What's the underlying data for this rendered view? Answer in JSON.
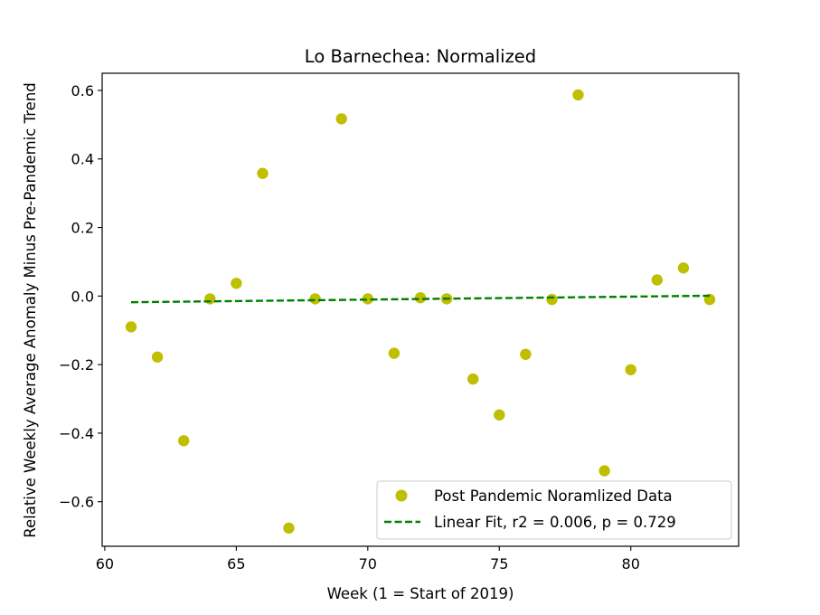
{
  "chart_data": {
    "type": "scatter",
    "title": "Lo Barnechea: Normalized",
    "xlabel": "Week (1 = Start of 2019)",
    "ylabel": "Relative Weekly Average Anomaly Minus Pre-Pandemic Trend",
    "xlim": [
      59.9,
      84.1
    ],
    "ylim": [
      -0.73,
      0.65
    ],
    "xticks": [
      60,
      65,
      70,
      75,
      80
    ],
    "yticks": [
      -0.6,
      -0.4,
      -0.2,
      0.0,
      0.2,
      0.4,
      0.6
    ],
    "xtick_labels": [
      "60",
      "65",
      "70",
      "75",
      "80"
    ],
    "ytick_labels": [
      "−0.6",
      "−0.4",
      "−0.2",
      "0.0",
      "0.2",
      "0.4",
      "0.6"
    ],
    "grid": false,
    "legend_position": "lower-right",
    "series": [
      {
        "name": "Post Pandemic Noramlized Data",
        "kind": "scatter",
        "color": "#bfbf00",
        "x": [
          61,
          62,
          63,
          64,
          65,
          66,
          67,
          68,
          69,
          70,
          71,
          72,
          73,
          74,
          75,
          76,
          77,
          78,
          79,
          80,
          81,
          82,
          83
        ],
        "y": [
          -0.09,
          -0.178,
          -0.422,
          -0.008,
          0.037,
          0.358,
          -0.677,
          -0.008,
          0.517,
          -0.008,
          -0.167,
          -0.005,
          -0.008,
          -0.242,
          -0.347,
          -0.17,
          -0.01,
          0.587,
          -0.51,
          -0.215,
          0.047,
          0.082,
          -0.01
        ]
      },
      {
        "name": "Linear Fit, r2 = 0.006, p = 0.729",
        "kind": "line",
        "style": "dashed",
        "color": "#007f00",
        "x": [
          61,
          83
        ],
        "y": [
          -0.018,
          0.001
        ]
      }
    ]
  }
}
